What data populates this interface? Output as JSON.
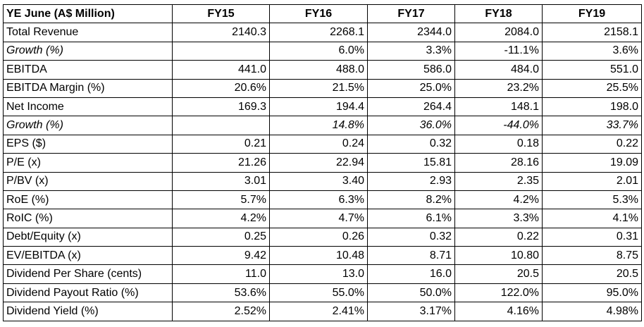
{
  "table": {
    "header": [
      "YE June (A$ Million)",
      "FY15",
      "FY16",
      "FY17",
      "FY18",
      "FY19"
    ],
    "rows": [
      {
        "label": "Total Revenue",
        "values": [
          "2140.3",
          "2268.1",
          "2344.0",
          "2084.0",
          "2158.1"
        ],
        "italic": false
      },
      {
        "label": "Growth (%)",
        "values": [
          "",
          "6.0%",
          "3.3%",
          "-11.1%",
          "3.6%"
        ],
        "italic": true,
        "italic_values": false
      },
      {
        "label": "EBITDA",
        "values": [
          "441.0",
          "488.0",
          "586.0",
          "484.0",
          "551.0"
        ],
        "italic": false
      },
      {
        "label": "EBITDA Margin (%)",
        "values": [
          "20.6%",
          "21.5%",
          "25.0%",
          "23.2%",
          "25.5%"
        ],
        "italic": false
      },
      {
        "label": "Net Income",
        "values": [
          "169.3",
          "194.4",
          "264.4",
          "148.1",
          "198.0"
        ],
        "italic": false
      },
      {
        "label": "Growth (%)",
        "values": [
          "",
          "14.8%",
          "36.0%",
          "-44.0%",
          "33.7%"
        ],
        "italic": true,
        "italic_values": true
      },
      {
        "label": "EPS ($)",
        "values": [
          "0.21",
          "0.24",
          "0.32",
          "0.18",
          "0.22"
        ],
        "italic": false
      },
      {
        "label": "P/E (x)",
        "values": [
          "21.26",
          "22.94",
          "15.81",
          "28.16",
          "19.09"
        ],
        "italic": false
      },
      {
        "label": "P/BV (x)",
        "values": [
          "3.01",
          "3.40",
          "2.93",
          "2.35",
          "2.01"
        ],
        "italic": false
      },
      {
        "label": "RoE (%)",
        "values": [
          "5.7%",
          "6.3%",
          "8.2%",
          "4.2%",
          "5.3%"
        ],
        "italic": false
      },
      {
        "label": "RoIC (%)",
        "values": [
          "4.2%",
          "4.7%",
          "6.1%",
          "3.3%",
          "4.1%"
        ],
        "italic": false
      },
      {
        "label": "Debt/Equity (x)",
        "values": [
          "0.25",
          "0.26",
          "0.32",
          "0.22",
          "0.31"
        ],
        "italic": false
      },
      {
        "label": "EV/EBITDA (x)",
        "values": [
          "9.42",
          "10.48",
          "8.71",
          "10.80",
          "8.75"
        ],
        "italic": false
      },
      {
        "label": "Dividend Per Share (cents)",
        "values": [
          "11.0",
          "13.0",
          "16.0",
          "20.5",
          "20.5"
        ],
        "italic": false
      },
      {
        "label": "Dividend Payout Ratio (%)",
        "values": [
          "53.6%",
          "55.0%",
          "50.0%",
          "122.0%",
          "95.0%"
        ],
        "italic": false
      },
      {
        "label": "Dividend Yield (%)",
        "values": [
          "2.52%",
          "2.41%",
          "3.17%",
          "4.16%",
          "4.98%"
        ],
        "italic": false
      }
    ]
  }
}
